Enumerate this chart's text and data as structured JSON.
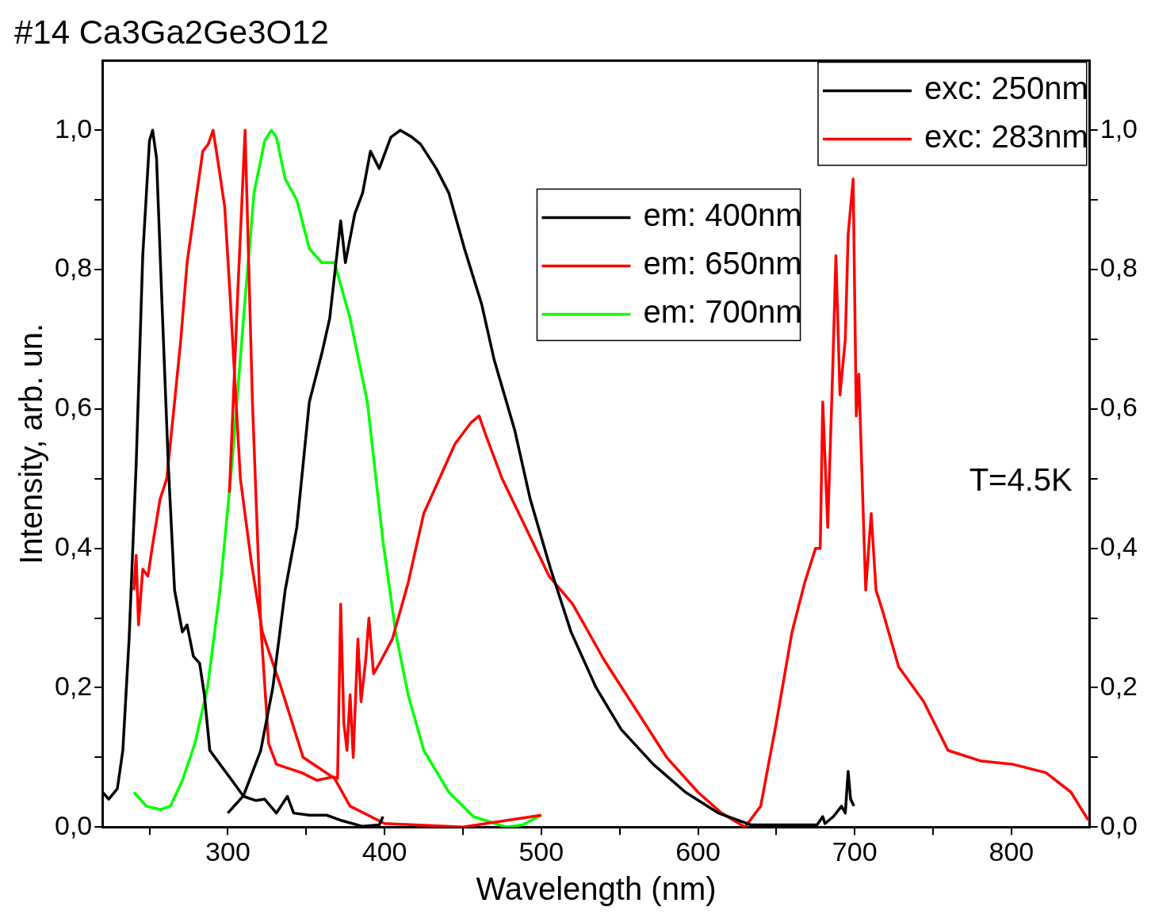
{
  "chart_data": {
    "type": "line",
    "title": "#14 Ca3Ga2Ge3O12",
    "xlabel": "Wavelength (nm)",
    "ylabel": "Intensity, arb. un.",
    "annotations": [
      "T=4.5K"
    ],
    "xlim": [
      220,
      850
    ],
    "xticks": [
      {
        "value": 250,
        "label": null
      },
      300,
      {
        "value": 350,
        "label": null
      },
      400,
      {
        "value": 450,
        "label": null
      },
      500,
      {
        "value": 550,
        "label": null
      },
      600,
      {
        "value": 650,
        "label": null
      },
      700,
      {
        "value": 750,
        "label": null
      },
      800
    ],
    "ylim": [
      0,
      1.1
    ],
    "yticks": [
      {
        "value": 0,
        "label": "0,0"
      },
      {
        "value": 0.1,
        "label": null
      },
      {
        "value": 0.2,
        "label": "0,2"
      },
      {
        "value": 0.3,
        "label": null
      },
      {
        "value": 0.4,
        "label": "0,4"
      },
      {
        "value": 0.5,
        "label": null
      },
      {
        "value": 0.6,
        "label": "0,6"
      },
      {
        "value": 0.7,
        "label": null
      },
      {
        "value": 0.8,
        "label": "0,8"
      },
      {
        "value": 0.9,
        "label": null
      },
      {
        "value": 1.0,
        "label": "1,0"
      }
    ],
    "y2lim": [
      0,
      1.1
    ],
    "y2ticks": [
      {
        "value": 0,
        "label": "0,0"
      },
      {
        "value": 0.1,
        "label": null
      },
      {
        "value": 0.2,
        "label": "0,2"
      },
      {
        "value": 0.3,
        "label": null
      },
      {
        "value": 0.4,
        "label": "0,4"
      },
      {
        "value": 0.5,
        "label": null
      },
      {
        "value": 0.6,
        "label": "0,6"
      },
      {
        "value": 0.7,
        "label": null
      },
      {
        "value": 0.8,
        "label": "0,8"
      },
      {
        "value": 0.9,
        "label": null
      },
      {
        "value": 1.0,
        "label": "1,0"
      }
    ],
    "grid": false,
    "legend": "top right",
    "marker": "none",
    "line_style": "solid",
    "series": [
      {
        "name": "exc: 250nm",
        "color": "#000000",
        "x": [
          300,
          310,
          321,
          328.7,
          336.6,
          344,
          352,
          360,
          365,
          369,
          372,
          375,
          381,
          386,
          391,
          396.6,
          404,
          410,
          417.5,
          423,
          433,
          441,
          451,
          462,
          470,
          483,
          493,
          506,
          519,
          535,
          551,
          571.5,
          592,
          613,
          634,
          676,
          679.6,
          681,
          686.4,
          691.6,
          694,
          695.8,
          697.4,
          699.5
        ],
        "values": [
          0.02,
          0.045,
          0.11,
          0.2,
          0.34,
          0.43,
          0.61,
          0.68,
          0.73,
          0.81,
          0.87,
          0.81,
          0.88,
          0.91,
          0.97,
          0.945,
          0.99,
          1.0,
          0.99,
          0.98,
          0.945,
          0.91,
          0.83,
          0.75,
          0.67,
          0.57,
          0.47,
          0.37,
          0.28,
          0.2,
          0.14,
          0.09,
          0.05,
          0.02,
          0.003,
          0.003,
          0.015,
          0.005,
          0.015,
          0.03,
          0.02,
          0.08,
          0.04,
          0.03
        ]
      },
      {
        "name": "exc: 283nm",
        "color": "#ff0000",
        "x": [
          301,
          306,
          311,
          315.7,
          321,
          326,
          331,
          347,
          357,
          367,
          370,
          372,
          374,
          376,
          378,
          380,
          383,
          385,
          388,
          390,
          393,
          398,
          405,
          415,
          425,
          435,
          445,
          455,
          460.3,
          465,
          475,
          490,
          505,
          520,
          540,
          560,
          580,
          600,
          615,
          630,
          640,
          650,
          660,
          668,
          675,
          678,
          679.6,
          682.8,
          686,
          688,
          690.6,
          694,
          695.8,
          699,
          701,
          702.6,
          707,
          710.5,
          713.6,
          717.8,
          728,
          744,
          759.5,
          780,
          801,
          822,
          838,
          849
        ],
        "values": [
          0.48,
          0.75,
          1.0,
          0.61,
          0.29,
          0.12,
          0.09,
          0.078,
          0.067,
          0.072,
          0.07,
          0.32,
          0.15,
          0.11,
          0.19,
          0.1,
          0.27,
          0.18,
          0.24,
          0.3,
          0.22,
          0.24,
          0.27,
          0.35,
          0.45,
          0.5,
          0.55,
          0.58,
          0.59,
          0.56,
          0.5,
          0.43,
          0.36,
          0.32,
          0.24,
          0.17,
          0.1,
          0.05,
          0.02,
          0.0,
          0.03,
          0.15,
          0.28,
          0.35,
          0.4,
          0.4,
          0.61,
          0.43,
          0.66,
          0.82,
          0.62,
          0.7,
          0.85,
          0.93,
          0.59,
          0.65,
          0.34,
          0.45,
          0.34,
          0.31,
          0.23,
          0.18,
          0.11,
          0.095,
          0.09,
          0.078,
          0.05,
          0.01
        ]
      },
      {
        "name": "em: 400nm",
        "color": "#000000",
        "x": [
          220,
          224,
          229.5,
          233,
          237,
          241.5,
          245.7,
          250,
          252,
          254.5,
          258,
          262,
          266,
          271,
          274,
          278,
          282,
          285,
          288.5,
          295,
          302.6,
          310,
          318,
          323.5,
          331,
          338,
          342,
          352,
          363,
          373,
          386,
          396.6,
          399
        ],
        "values": [
          0.05,
          0.04,
          0.055,
          0.11,
          0.27,
          0.52,
          0.82,
          0.985,
          1.0,
          0.96,
          0.75,
          0.52,
          0.34,
          0.28,
          0.29,
          0.245,
          0.235,
          0.19,
          0.11,
          0.09,
          0.067,
          0.044,
          0.038,
          0.04,
          0.02,
          0.044,
          0.02,
          0.017,
          0.017,
          0.009,
          0.001,
          0.003,
          0.015
        ]
      },
      {
        "name": "em: 650nm",
        "color": "#ff0000",
        "x": [
          240,
          241.5,
          243,
          245.7,
          249,
          252,
          256.7,
          261,
          266,
          270,
          274,
          279,
          284,
          287.5,
          290.6,
          293.7,
          298,
          301.5,
          304,
          308,
          315,
          322,
          334,
          348,
          368,
          378,
          400,
          450,
          500
        ],
        "values": [
          0.34,
          0.39,
          0.29,
          0.37,
          0.36,
          0.405,
          0.47,
          0.5,
          0.61,
          0.7,
          0.81,
          0.89,
          0.97,
          0.98,
          1.0,
          0.955,
          0.89,
          0.76,
          0.66,
          0.5,
          0.38,
          0.28,
          0.2,
          0.1,
          0.07,
          0.03,
          0.005,
          0.0,
          0.017
        ]
      },
      {
        "name": "em: 700nm",
        "color": "#00ff00",
        "x": [
          240,
          244,
          248,
          257,
          263.4,
          271,
          279,
          287,
          295,
          302.6,
          310,
          316.7,
          323.5,
          327.7,
          331,
          336.6,
          344,
          352,
          360,
          368,
          378,
          389,
          399,
          407,
          415,
          425,
          441,
          456.7,
          477.5,
          488,
          500
        ],
        "values": [
          0.05,
          0.04,
          0.03,
          0.025,
          0.03,
          0.067,
          0.12,
          0.2,
          0.34,
          0.52,
          0.73,
          0.91,
          0.985,
          1.0,
          0.99,
          0.93,
          0.9,
          0.83,
          0.81,
          0.81,
          0.73,
          0.61,
          0.41,
          0.28,
          0.19,
          0.11,
          0.05,
          0.015,
          0.0,
          0.003,
          0.017
        ]
      }
    ]
  }
}
